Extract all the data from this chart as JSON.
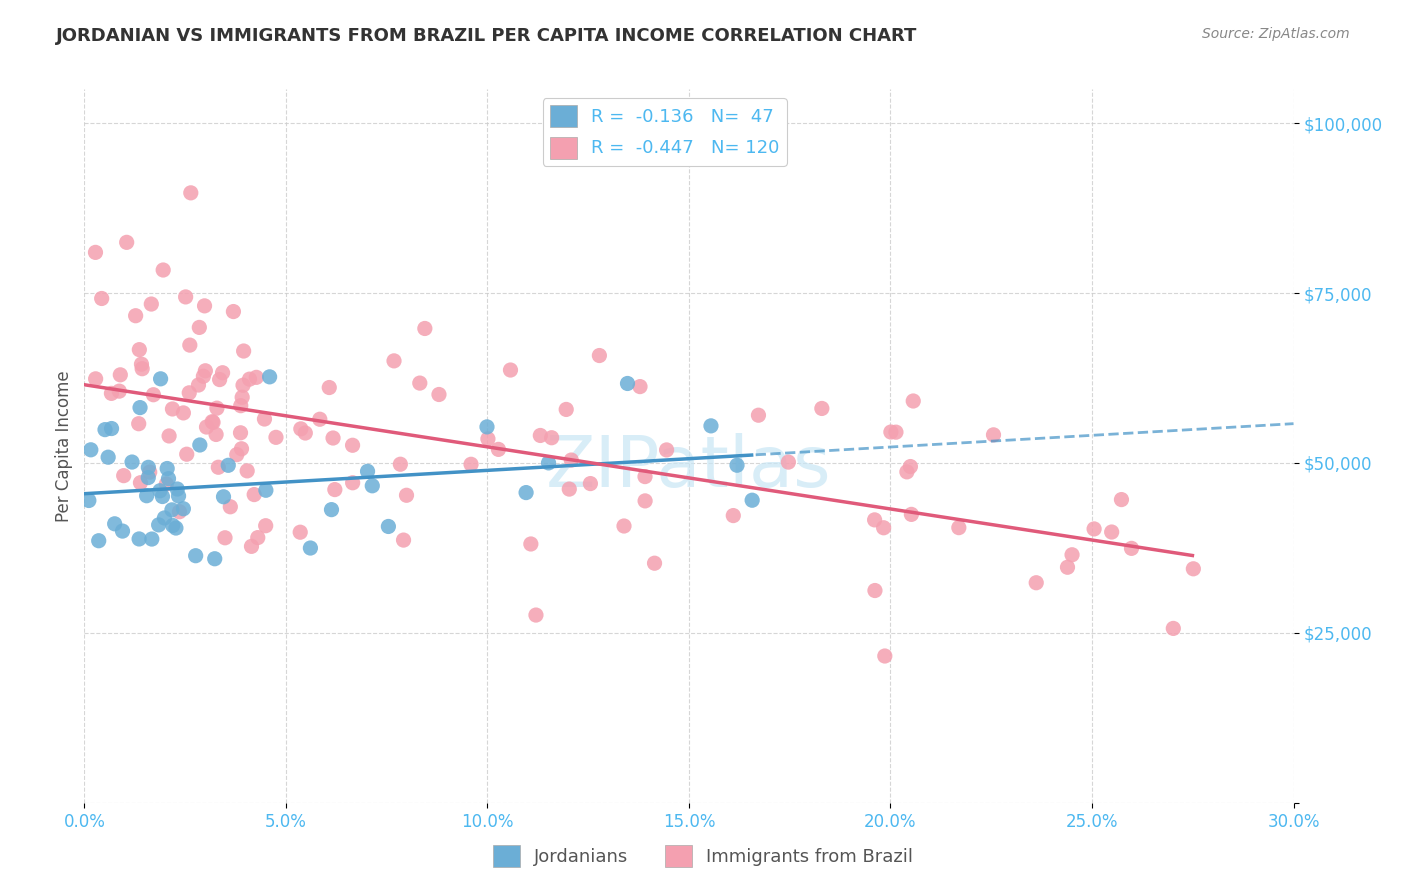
{
  "title": "JORDANIAN VS IMMIGRANTS FROM BRAZIL PER CAPITA INCOME CORRELATION CHART",
  "source": "Source: ZipAtlas.com",
  "ylabel": "Per Capita Income",
  "legend_labels": [
    "Jordanians",
    "Immigrants from Brazil"
  ],
  "blue_R": "-0.136",
  "blue_N": "47",
  "pink_R": "-0.447",
  "pink_N": "120",
  "blue_color": "#6baed6",
  "pink_color": "#f4a0b0",
  "blue_line_color": "#4292c6",
  "pink_line_color": "#e05a7a",
  "axis_color": "#4db8f0",
  "background_color": "#ffffff",
  "grid_color": "#cccccc",
  "title_fontsize": 13
}
